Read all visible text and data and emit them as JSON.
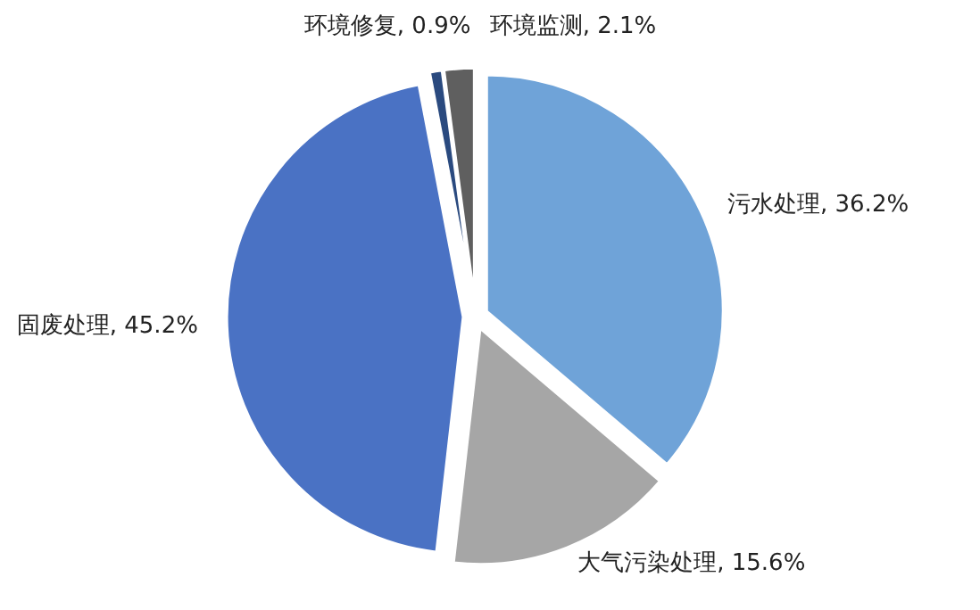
{
  "chart_data": {
    "type": "pie",
    "categories": [
      "污水处理",
      "大气污染处理",
      "固废处理",
      "环境修复",
      "环境监测"
    ],
    "values": [
      36.2,
      15.6,
      45.2,
      0.9,
      2.1
    ],
    "colors": [
      "#6fa3d8",
      "#a6a6a6",
      "#4a72c4",
      "#2a4a7f",
      "#5f5f5f"
    ],
    "value_labels": [
      "36.2%",
      "15.6%",
      "45.2%",
      "0.9%",
      "2.1%"
    ]
  }
}
